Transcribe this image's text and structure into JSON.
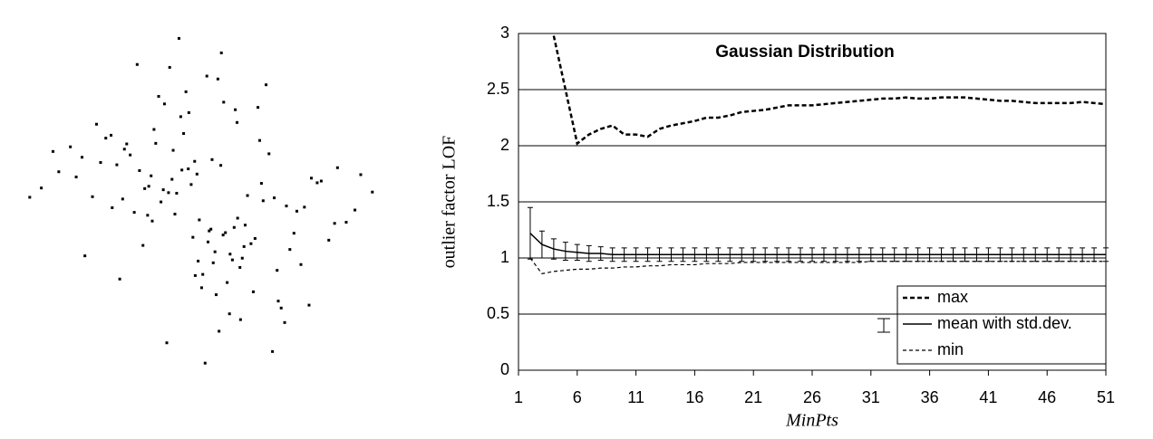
{
  "chart_data": [
    {
      "type": "scatter",
      "color": "#000000",
      "xlim": [
        -3.2,
        3.2
      ],
      "ylim": [
        -3.2,
        3.2
      ],
      "x": [
        0.12,
        -0.53,
        1.21,
        -1.45,
        0.34,
        0.88,
        -0.22,
        -2.1,
        1.67,
        0.05,
        -0.91,
        0.44,
        -1.2,
        2.3,
        -0.35,
        0.71,
        -0.64,
        1.02,
        -1.78,
        0.19,
        0.57,
        -0.08,
        -2.5,
        1.39,
        -0.47,
        0.93,
        -1.05,
        2.02,
        -0.15,
        0.3,
        -0.74,
        1.55,
        -1.33,
        0.66,
        -2.8,
        0.21,
        1.12,
        -0.59,
        2.6,
        -0.27,
        0.81,
        -1.6,
        0.02,
        1.85,
        -0.97,
        -0.4,
        0.49,
        -1.92,
        1.28,
        0.14,
        -0.31,
        2.25,
        -1.11,
        0.62,
        -0.7,
        1.48,
        -2.3,
        0.37,
        -0.04,
        0.99,
        -1.5,
        0.26,
        1.73,
        -0.86,
        -0.19,
        0.75,
        -2.05,
        1.07,
        -0.55,
        0.4,
        2.9,
        -1.27,
        0.09,
        -0.68,
        1.33,
        -0.12,
        0.58,
        -1.69,
        2.15,
        -0.43,
        0.16,
        -0.95,
        1.6,
        -2.6,
        0.52,
        -0.26,
        1.18,
        -1.4,
        0.69,
        -0.83,
        0.29,
        -0.02,
        1.95,
        -1.15,
        0.45,
        -0.61,
        2.45,
        -1.85,
        0.85,
        -0.38,
        1.42,
        -0.78,
        0.07,
        -2.2,
        0.63,
        -0.16,
        1.26,
        -1.02,
        -3.0,
        0.33,
        0.96,
        -0.5,
        1.81,
        -1.37,
        0.24,
        -0.89,
        2.7,
        -0.1,
        0.54,
        -1.58
      ],
      "y": [
        -0.44,
        0.92,
        0.1,
        -1.3,
        1.75,
        -0.6,
        0.33,
        0.8,
        -1.05,
        2.2,
        0.48,
        -1.9,
        -0.15,
        0.62,
        1.21,
        -0.37,
        -2.4,
        0.05,
        0.71,
        -0.83,
        1.4,
        -0.28,
        0.55,
        -2.05,
        0.18,
        1.66,
        -0.72,
        0.39,
        -1.24,
        2.6,
        0.03,
        -0.51,
        1.03,
        -0.94,
        0.27,
        -1.57,
        0.86,
        2.35,
        -0.11,
        0.6,
        -0.69,
        1.18,
        -2.75,
        0.44,
        -0.2,
        1.5,
        -0.97,
        0.12,
        -1.68,
        0.76,
        1.93,
        -0.34,
        0.57,
        -1.1,
        0.24,
        -0.79,
        0.98,
        -0.5,
        -1.45,
        0.35,
        0.67,
        -2.2,
        -0.06,
        1.28,
        -0.58,
        0.14,
        -0.9,
        2.05,
        0.42,
        -1.36,
        0.2,
        0.84,
        -0.47,
        1.72,
        -1.8,
        0.51,
        -0.25,
        1.13,
        -0.63,
        2.85,
        -1.02,
        0.3,
        -0.13,
        0.9,
        -0.41,
        1.57,
        -2.55,
        0.08,
        -0.74,
        1.04,
        0.66,
        -1.22,
        0.36,
        2.4,
        -0.87,
        0.19,
        -0.32,
        1.37,
        -1.52,
        0.58,
        -0.04,
        1.85,
        -0.66,
        0.46,
        -2.0,
        0.73,
        -1.15,
        0.26,
        0.11,
        -0.54,
        1.09,
        -0.18,
        -1.75,
        0.94,
        2.15,
        -0.3,
        0.5,
        -0.99,
        1.62,
        -0.07
      ]
    },
    {
      "type": "line",
      "title": "Gaussian Distribution",
      "x_label": "MinPts",
      "y_label": "outlier factor LOF",
      "xlim": [
        1,
        51
      ],
      "xticks": [
        1,
        6,
        11,
        16,
        21,
        26,
        31,
        36,
        41,
        46,
        51
      ],
      "ylim": [
        0,
        3
      ],
      "yticks": [
        0,
        0.5,
        1,
        1.5,
        2,
        2.5,
        3
      ],
      "grid": true,
      "legend": "lower right",
      "x": [
        2,
        3,
        4,
        5,
        6,
        7,
        8,
        9,
        10,
        11,
        12,
        13,
        14,
        15,
        16,
        17,
        18,
        19,
        20,
        21,
        22,
        23,
        24,
        25,
        26,
        27,
        28,
        29,
        30,
        31,
        32,
        33,
        34,
        35,
        36,
        37,
        38,
        39,
        40,
        41,
        42,
        43,
        44,
        45,
        46,
        47,
        48,
        49,
        50,
        51
      ],
      "series": [
        {
          "name": "max",
          "color": "#000000",
          "line_style": "dashed-bold",
          "values": [
            null,
            null,
            2.98,
            2.5,
            2.02,
            2.1,
            2.15,
            2.18,
            2.1,
            2.1,
            2.08,
            2.15,
            2.18,
            2.2,
            2.22,
            2.25,
            2.25,
            2.27,
            2.3,
            2.31,
            2.32,
            2.34,
            2.36,
            2.36,
            2.36,
            2.37,
            2.38,
            2.39,
            2.4,
            2.41,
            2.42,
            2.42,
            2.43,
            2.42,
            2.42,
            2.43,
            2.43,
            2.43,
            2.42,
            2.41,
            2.4,
            2.4,
            2.39,
            2.38,
            2.38,
            2.38,
            2.38,
            2.39,
            2.38,
            2.37
          ]
        },
        {
          "name": "mean with std.dev.",
          "color": "#000000",
          "line_style": "solid",
          "values": [
            1.22,
            1.12,
            1.08,
            1.06,
            1.05,
            1.04,
            1.04,
            1.03,
            1.03,
            1.03,
            1.03,
            1.03,
            1.03,
            1.03,
            1.03,
            1.03,
            1.03,
            1.03,
            1.03,
            1.03,
            1.03,
            1.03,
            1.03,
            1.03,
            1.03,
            1.03,
            1.03,
            1.03,
            1.03,
            1.03,
            1.03,
            1.03,
            1.03,
            1.03,
            1.03,
            1.03,
            1.03,
            1.03,
            1.03,
            1.03,
            1.03,
            1.03,
            1.03,
            1.03,
            1.03,
            1.03,
            1.03,
            1.03,
            1.03,
            1.03
          ],
          "errors": [
            0.23,
            0.12,
            0.09,
            0.08,
            0.07,
            0.07,
            0.06,
            0.06,
            0.06,
            0.06,
            0.06,
            0.06,
            0.06,
            0.06,
            0.06,
            0.06,
            0.06,
            0.06,
            0.06,
            0.06,
            0.06,
            0.06,
            0.06,
            0.06,
            0.06,
            0.06,
            0.06,
            0.06,
            0.06,
            0.06,
            0.06,
            0.06,
            0.06,
            0.06,
            0.06,
            0.06,
            0.06,
            0.06,
            0.06,
            0.06,
            0.06,
            0.06,
            0.06,
            0.06,
            0.06,
            0.06,
            0.06,
            0.06,
            0.06,
            0.06
          ]
        },
        {
          "name": "min",
          "color": "#000000",
          "line_style": "dashed",
          "values": [
            1.0,
            0.86,
            0.88,
            0.89,
            0.9,
            0.9,
            0.91,
            0.91,
            0.92,
            0.92,
            0.93,
            0.93,
            0.94,
            0.94,
            0.94,
            0.95,
            0.95,
            0.95,
            0.96,
            0.96,
            0.96,
            0.96,
            0.96,
            0.96,
            0.96,
            0.96,
            0.96,
            0.96,
            0.96,
            0.97,
            0.97,
            0.97,
            0.97,
            0.97,
            0.97,
            0.97,
            0.97,
            0.97,
            0.97,
            0.97,
            0.97,
            0.97,
            0.97,
            0.97,
            0.97,
            0.97,
            0.97,
            0.97,
            0.97,
            0.97
          ]
        }
      ]
    }
  ]
}
